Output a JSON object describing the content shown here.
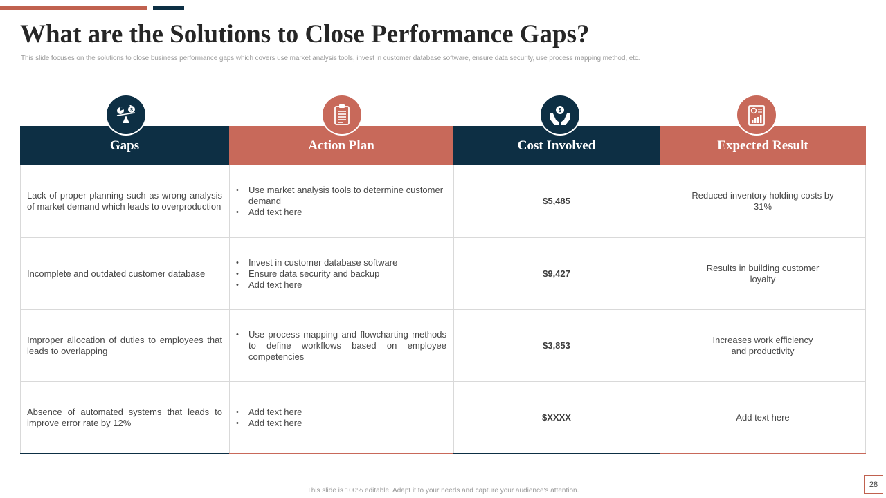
{
  "slide": {
    "title": "What are the Solutions to Close Performance Gaps?",
    "subtitle": "This slide focuses on the solutions to close business performance gaps which covers use market analysis tools, invest in  customer database software, ensure data security, use process mapping method,  etc.",
    "footer": "This slide is 100% editable.  Adapt it to your needs and capture your audience's attention.",
    "page_number": "28"
  },
  "colors": {
    "navy": "#0d2f44",
    "red": "#c8695a",
    "accent_red": "#c0614f"
  },
  "columns": [
    {
      "label": "Gaps",
      "icon": "balance-scale-icon"
    },
    {
      "label": "Action Plan",
      "icon": "clipboard-icon"
    },
    {
      "label": "Cost Involved",
      "icon": "money-hands-icon"
    },
    {
      "label": "Expected Result",
      "icon": "report-chart-icon"
    }
  ],
  "rows": [
    {
      "gap": "Lack of proper planning such as wrong analysis of market demand which leads to overproduction",
      "actions": [
        "Use market analysis tools to determine customer demand",
        "Add text here"
      ],
      "cost": "$5,485",
      "result": "Reduced inventory holding costs by 31%"
    },
    {
      "gap": "Incomplete and outdated customer database",
      "actions": [
        "Invest in customer database software",
        "Ensure data security and backup",
        "Add text here"
      ],
      "cost": "$9,427",
      "result": "Results in building customer loyalty"
    },
    {
      "gap": "Improper allocation of duties to employees that leads to overlapping",
      "actions": [
        "Use process mapping and flowcharting methods to define workflows based on employee competencies"
      ],
      "cost": "$3,853",
      "result": "Increases work efficiency and productivity"
    },
    {
      "gap": "Absence of automated systems that leads to improve error rate by 12%",
      "actions": [
        "Add text here",
        "Add text here"
      ],
      "cost": "$XXXX",
      "result": "Add text here"
    }
  ]
}
